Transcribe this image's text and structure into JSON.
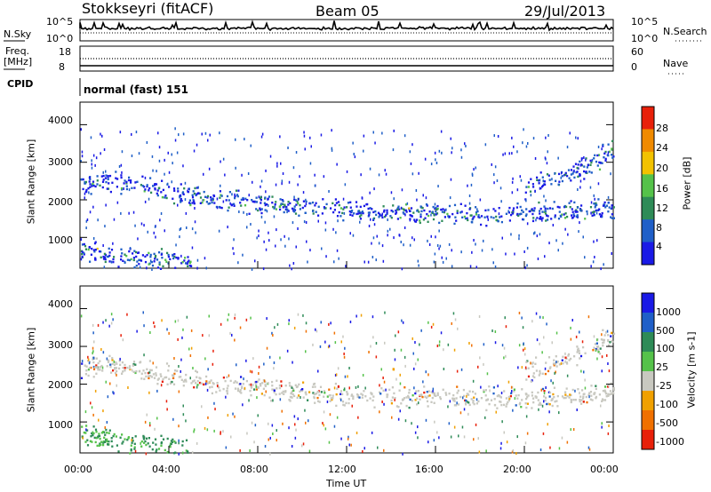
{
  "header": {
    "station": "Stokkseyri (fitACF)",
    "beam": "Beam 05",
    "date": "29/Jul/2013"
  },
  "noise_panel": {
    "left_label": "N.Sky",
    "right_label": "N.Search",
    "left_ticks": [
      "10^5",
      "10^0"
    ],
    "right_ticks": [
      "10^5",
      "10^0"
    ]
  },
  "freq_panel": {
    "left_label_line1": "Freq.",
    "left_label_line2": "[MHz]",
    "right_label": "Nave",
    "left_ticks": [
      "18",
      "8"
    ],
    "right_ticks": [
      "60",
      "0"
    ]
  },
  "cpid_panel": {
    "label": "CPID",
    "value": "normal (fast) 151"
  },
  "chart_data": [
    {
      "type": "heatmap",
      "quantity": "Power",
      "ylabel": "Slant Range [km]",
      "xlabel": "",
      "ylim": [
        180,
        4600
      ],
      "yticks": [
        "1000",
        "2000",
        "3000",
        "4000"
      ],
      "colorbar": {
        "label": "Power [dB]",
        "ticks": [
          "4",
          "8",
          "12",
          "16",
          "20",
          "24",
          "28"
        ],
        "colors": [
          "#1a1ae6",
          "#1f5fc8",
          "#2e8b57",
          "#55c24a",
          "#f2c200",
          "#f08a00",
          "#e8200a"
        ]
      },
      "echo_bands": [
        {
          "t": [
            0,
            1.5,
            3.5,
            5,
            6,
            8,
            10,
            12,
            14,
            16,
            18,
            20,
            22,
            24
          ],
          "range_km": [
            2400,
            2500,
            2300,
            2100,
            2000,
            1950,
            1800,
            1750,
            1700,
            1700,
            1650,
            1650,
            1700,
            1800
          ]
        },
        {
          "t": [
            20,
            21.5,
            23,
            24
          ],
          "range_km": [
            2300,
            2600,
            3000,
            3350
          ]
        },
        {
          "t": [
            0,
            1,
            2,
            3,
            4,
            5
          ],
          "range_km": [
            700,
            600,
            500,
            450,
            400,
            350
          ]
        }
      ]
    },
    {
      "type": "heatmap",
      "quantity": "Velocity",
      "ylabel": "Slant Range [km]",
      "xlabel": "Time UT",
      "ylim": [
        180,
        4600
      ],
      "yticks": [
        "1000",
        "2000",
        "3000",
        "4000"
      ],
      "xticks": [
        "00:00",
        "04:00",
        "08:00",
        "12:00",
        "16:00",
        "20:00",
        "00:00"
      ],
      "colorbar": {
        "label": "Velocity [m s-1]",
        "ticks": [
          "1000",
          "500",
          "100",
          "25",
          "-25",
          "-100",
          "-500",
          "-1000"
        ],
        "colors": [
          "#1a1ae6",
          "#1f5fc8",
          "#2e8b57",
          "#55c24a",
          "#c8c8c0",
          "#f0a000",
          "#f07000",
          "#e8200a"
        ]
      }
    }
  ]
}
